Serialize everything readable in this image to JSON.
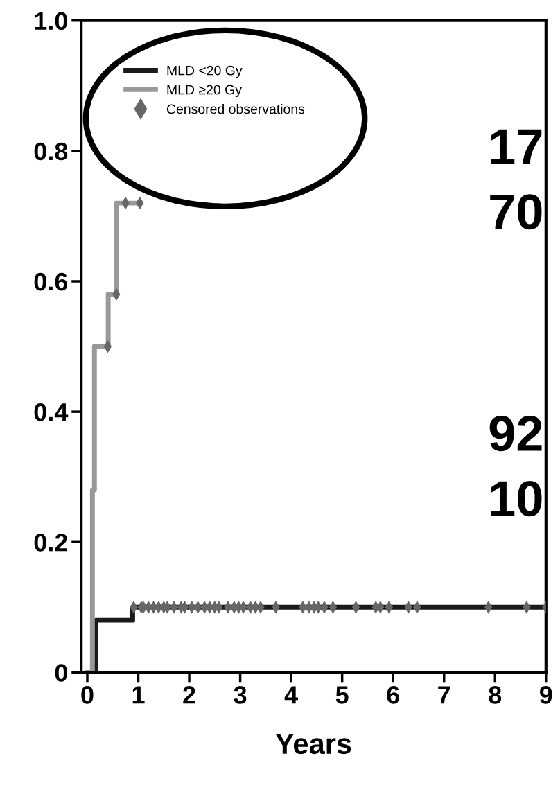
{
  "chart_data": {
    "type": "step",
    "xlabel": "Years",
    "xlim": [
      -0.12,
      9.0
    ],
    "xticks": [
      0,
      1,
      2,
      3,
      4,
      5,
      6,
      7,
      8,
      9
    ],
    "ylim": [
      0,
      1.0
    ],
    "yticks": [
      0,
      0.2,
      0.4,
      0.6,
      0.8,
      {
        "value": 1.0,
        "label": "1.0"
      }
    ],
    "grid": false,
    "legend": "top left",
    "marker": "none",
    "line_style": "solid",
    "series": [
      {
        "name": "MLD <20 Gy",
        "color": "#1a1a1a",
        "x": [
          0,
          0.17,
          0.89,
          9.0
        ],
        "values": [
          0,
          0.08,
          0.1,
          0.1
        ]
      },
      {
        "name": "MLD ≥20 Gy",
        "color": "#999999",
        "x": [
          0,
          0.1,
          0.14,
          0.41,
          0.57,
          1.03
        ],
        "values": [
          0,
          0.28,
          0.5,
          0.58,
          0.72,
          0.72
        ]
      },
      {
        "name": "Censored observations",
        "type": "scatter",
        "marker": "diamond",
        "color": "#666666",
        "x": [
          0.4,
          0.57,
          0.75,
          1.03,
          0.91,
          1.06,
          1.1,
          1.2,
          1.3,
          1.4,
          1.5,
          1.57,
          1.7,
          1.84,
          1.91,
          2.05,
          2.17,
          2.3,
          2.4,
          2.5,
          2.58,
          2.76,
          2.88,
          2.97,
          3.06,
          3.2,
          3.3,
          3.4,
          3.7,
          4.23,
          4.35,
          4.45,
          4.53,
          4.65,
          4.82,
          5.27,
          5.66,
          5.75,
          5.92,
          6.3,
          6.47,
          7.87,
          8.62,
          9.0
        ],
        "values": [
          0.5,
          0.58,
          0.72,
          0.72,
          0.1,
          0.1,
          0.1,
          0.1,
          0.1,
          0.1,
          0.1,
          0.1,
          0.1,
          0.1,
          0.1,
          0.1,
          0.1,
          0.1,
          0.1,
          0.1,
          0.1,
          0.1,
          0.1,
          0.1,
          0.1,
          0.1,
          0.1,
          0.1,
          0.1,
          0.1,
          0.1,
          0.1,
          0.1,
          0.1,
          0.1,
          0.1,
          0.1,
          0.1,
          0.1,
          0.1,
          0.1,
          0.1,
          0.1,
          0.1
        ]
      }
    ],
    "annotations": [
      "17",
      "70",
      "92",
      "10"
    ]
  }
}
